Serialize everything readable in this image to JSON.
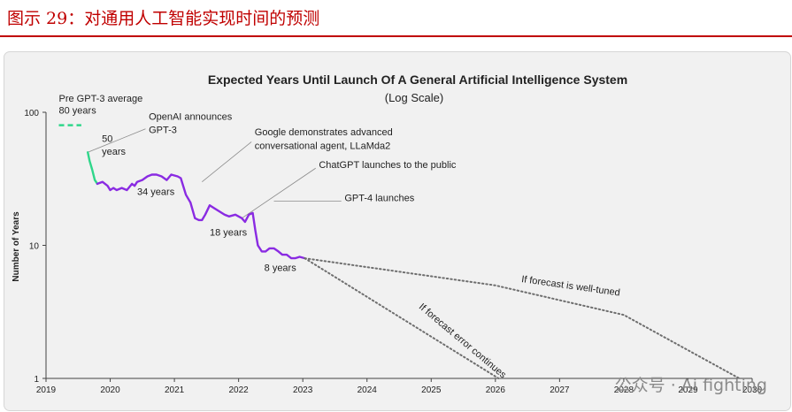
{
  "figure_caption": "图示 29：对通用人工智能实现时间的预测",
  "watermark": "公众号 · Ai fighting",
  "colors": {
    "caption": "#c00000",
    "line": "#8a2be2",
    "highlight": "#2fd68a",
    "forecast": "#6e6e6e",
    "axis": "#444444",
    "text": "#222222"
  },
  "chart_data": {
    "type": "line",
    "title": "Expected Years Until Launch Of A General Artificial Intelligence System",
    "subtitle": "(Log Scale)",
    "ylabel": "Number of Years",
    "xlabel": "",
    "yscale": "log",
    "ylim": [
      1,
      100
    ],
    "xlim": [
      2019,
      2030
    ],
    "x_ticks": [
      "2019",
      "2020",
      "2021",
      "2022",
      "2023",
      "2024",
      "2025",
      "2026",
      "2027",
      "2028",
      "2029",
      "2030"
    ],
    "y_ticks": [
      "1",
      "10",
      "100"
    ],
    "series": [
      {
        "name": "Pre GPT-3 average",
        "style": "dashed",
        "color": "#2fd68a",
        "x": [
          2019.2,
          2019.55
        ],
        "y": [
          80,
          80
        ]
      },
      {
        "name": "Before GPT-3",
        "style": "solid",
        "color": "#2fd68a",
        "x": [
          2019.65,
          2019.68,
          2019.72,
          2019.76,
          2019.8
        ],
        "y": [
          50,
          43,
          37,
          31,
          29
        ]
      },
      {
        "name": "Community forecast",
        "style": "solid",
        "color": "#8a2be2",
        "x": [
          2019.8,
          2019.88,
          2019.96,
          2020.0,
          2020.05,
          2020.1,
          2020.18,
          2020.26,
          2020.34,
          2020.38,
          2020.42,
          2020.5,
          2020.58,
          2020.65,
          2020.72,
          2020.8,
          2020.88,
          2020.95,
          2021.05,
          2021.1,
          2021.18,
          2021.25,
          2021.32,
          2021.38,
          2021.43,
          2021.48,
          2021.55,
          2021.62,
          2021.7,
          2021.78,
          2021.85,
          2021.95,
          2022.05,
          2022.1,
          2022.16,
          2022.22,
          2022.26,
          2022.3,
          2022.36,
          2022.42,
          2022.48,
          2022.55,
          2022.62,
          2022.68,
          2022.75,
          2022.82,
          2022.88,
          2022.95,
          2023.03
        ],
        "y": [
          29,
          30,
          28,
          26,
          27,
          26,
          27,
          26,
          29,
          28,
          30,
          31,
          33,
          34,
          34,
          33,
          31,
          34,
          33,
          32,
          24,
          21,
          16,
          15.5,
          15.5,
          17,
          20,
          19,
          18,
          17,
          16.5,
          17,
          16,
          15,
          17,
          17.5,
          13,
          10,
          9,
          9,
          9.5,
          9.5,
          9,
          8.5,
          8.5,
          8,
          8,
          8.2,
          8
        ]
      },
      {
        "name": "If forecast is well-tuned",
        "style": "dotted",
        "color": "#6e6e6e",
        "x": [
          2023.03,
          2026.0,
          2028.0,
          2029.8
        ],
        "y": [
          8,
          5,
          3,
          1
        ]
      },
      {
        "name": "If forecast error continues",
        "style": "dotted",
        "color": "#6e6e6e",
        "x": [
          2023.03,
          2026.05
        ],
        "y": [
          8,
          1
        ]
      }
    ],
    "annotations": [
      {
        "text": "Pre GPT-3 average",
        "x": 2019.2,
        "y": 120
      },
      {
        "text": "80 years",
        "x": 2019.2,
        "y": 98
      },
      {
        "text": "OpenAI announces",
        "x": 2020.6,
        "y": 88
      },
      {
        "text": "GPT-3",
        "x": 2020.6,
        "y": 70
      },
      {
        "text": "50",
        "x": 2019.87,
        "y": 60
      },
      {
        "text": "years",
        "x": 2019.87,
        "y": 48
      },
      {
        "text": "34 years",
        "x": 2020.42,
        "y": 24
      },
      {
        "text": "Google demonstrates advanced",
        "x": 2022.25,
        "y": 67
      },
      {
        "text": "conversational agent, LLaMda2",
        "x": 2022.25,
        "y": 53
      },
      {
        "text": "ChatGPT launches to the public",
        "x": 2023.25,
        "y": 38
      },
      {
        "text": "18 years",
        "x": 2021.55,
        "y": 11.8
      },
      {
        "text": "GPT-4 launches",
        "x": 2023.65,
        "y": 21.5
      },
      {
        "text": "8 years",
        "x": 2022.4,
        "y": 6.4
      },
      {
        "text": "If forecast is well-tuned",
        "x": 2026.4,
        "y": 5.3,
        "rotation": 8
      },
      {
        "text": "If forecast error continues",
        "x": 2024.8,
        "y": 3.4,
        "rotation": 40
      }
    ],
    "callout_lines": [
      {
        "from": [
          2020.55,
          75
        ],
        "to": [
          2019.65,
          50
        ]
      },
      {
        "from": [
          2022.2,
          60
        ],
        "to": [
          2021.43,
          30
        ]
      },
      {
        "from": [
          2023.2,
          38
        ],
        "to": [
          2022.05,
          16
        ]
      },
      {
        "from": [
          2023.6,
          21.5
        ],
        "to": [
          2022.55,
          21.5
        ]
      }
    ]
  }
}
